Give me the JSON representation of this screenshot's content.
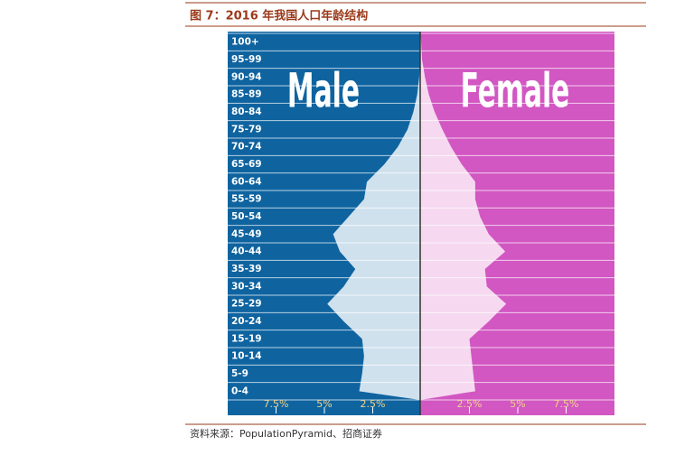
{
  "header": {
    "title": "图 7：2016 年我国人口年龄结构"
  },
  "chart_data": {
    "type": "pyramid",
    "categories": [
      "0-4",
      "5-9",
      "10-14",
      "15-19",
      "20-24",
      "25-29",
      "30-34",
      "35-39",
      "40-44",
      "45-49",
      "50-54",
      "55-59",
      "60-64",
      "65-69",
      "70-74",
      "75-79",
      "80-84",
      "85-89",
      "90-94",
      "95-99",
      "100+"
    ],
    "series": [
      {
        "name": "Male",
        "color": "#0f64a0",
        "fill": "#d0e1ee",
        "values": [
          3.2,
          3.05,
          2.95,
          3.05,
          4.0,
          4.85,
          4.0,
          3.4,
          4.2,
          4.55,
          3.75,
          2.95,
          2.8,
          1.9,
          1.2,
          0.7,
          0.4,
          0.2,
          0.1,
          0.03,
          0
        ]
      },
      {
        "name": "Female",
        "color": "#d257c2",
        "fill": "#f6d9f0",
        "values": [
          2.8,
          2.7,
          2.6,
          2.5,
          3.5,
          4.4,
          3.4,
          3.3,
          4.35,
          3.5,
          3.05,
          2.8,
          2.8,
          2.1,
          1.55,
          1.1,
          0.7,
          0.4,
          0.2,
          0.05,
          0
        ]
      }
    ],
    "xlim": [
      -10,
      10
    ],
    "xticks": [
      {
        "value": -7.5,
        "label": "7.5%"
      },
      {
        "value": -5,
        "label": "5%"
      },
      {
        "value": -2.5,
        "label": "2.5%"
      },
      {
        "value": 2.5,
        "label": "2.5%"
      },
      {
        "value": 5,
        "label": "5%"
      },
      {
        "value": 7.5,
        "label": "7.5%"
      }
    ]
  },
  "footer": {
    "source": "资料来源：PopulationPyramid、招商证券"
  }
}
